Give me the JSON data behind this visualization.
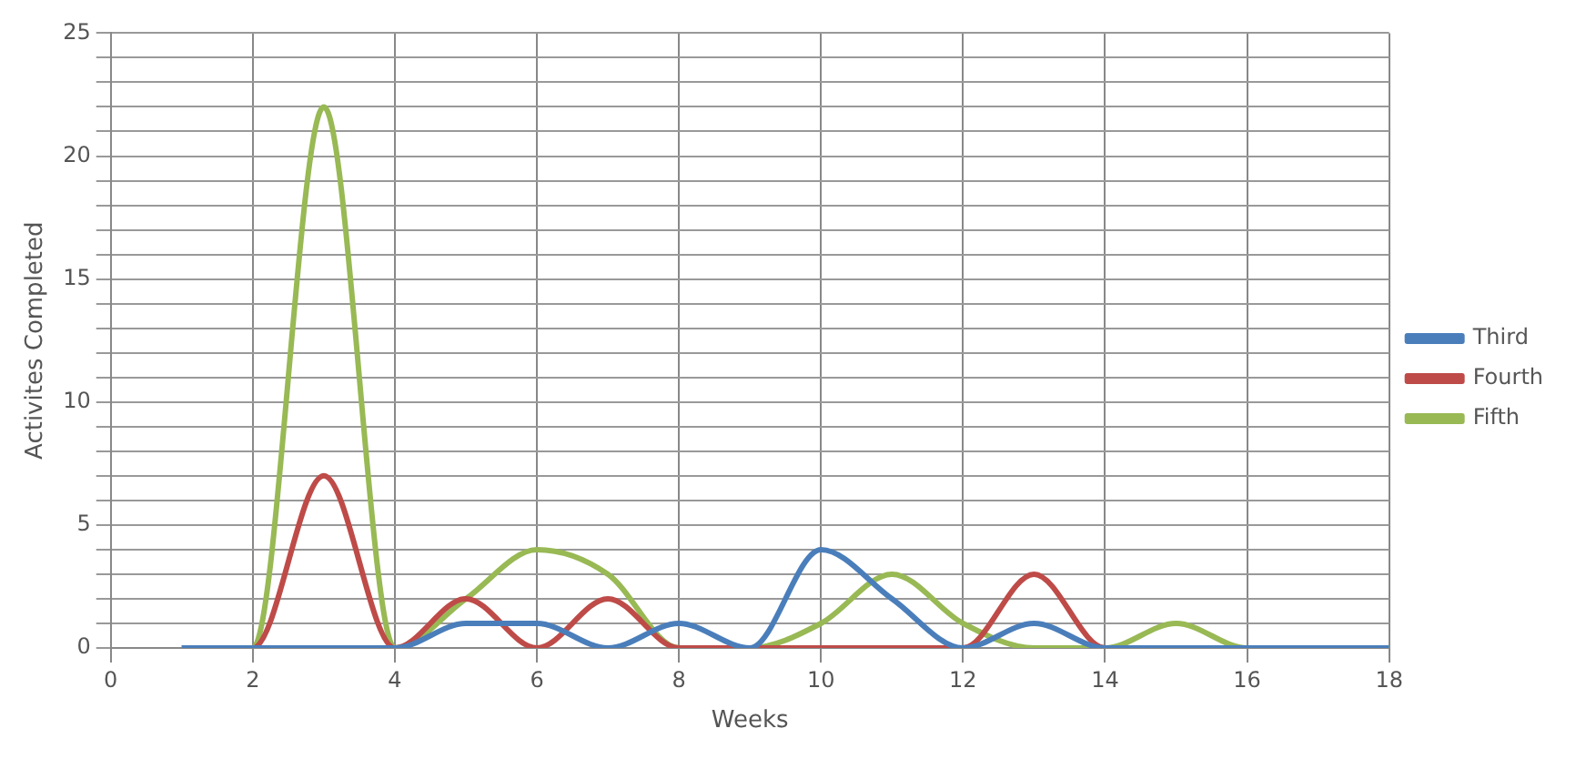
{
  "chart_data": {
    "type": "line",
    "xlabel": "Weeks",
    "ylabel": "Activites Completed",
    "x": [
      1,
      2,
      3,
      4,
      5,
      6,
      7,
      8,
      9,
      10,
      11,
      12,
      13,
      14,
      15,
      16,
      17,
      18
    ],
    "series": [
      {
        "name": "Third",
        "color": "#4a7ebb",
        "values": [
          0,
          0,
          0,
          0,
          1,
          1,
          0,
          1,
          0,
          4,
          2,
          0,
          1,
          0,
          0,
          0,
          0,
          0
        ]
      },
      {
        "name": "Fourth",
        "color": "#be4b48",
        "values": [
          0,
          0,
          7,
          0,
          2,
          0,
          2,
          0,
          0,
          0,
          0,
          0,
          3,
          0,
          0,
          null,
          null,
          null
        ]
      },
      {
        "name": "Fifth",
        "color": "#98b954",
        "values": [
          0,
          0,
          22,
          0,
          2,
          4,
          3,
          0,
          0,
          1,
          3,
          1,
          0,
          0,
          1,
          0,
          0,
          0
        ]
      }
    ],
    "xlim": [
      0,
      18
    ],
    "xticks": [
      0,
      2,
      4,
      6,
      8,
      10,
      12,
      14,
      16,
      18
    ],
    "ylim": [
      0,
      25
    ],
    "yticks": [
      0,
      {
        "value": 1,
        "label": null
      },
      {
        "value": 2,
        "label": null
      },
      {
        "value": 3,
        "label": null
      },
      {
        "value": 4,
        "label": null
      },
      5,
      {
        "value": 6,
        "label": null
      },
      {
        "value": 7,
        "label": null
      },
      {
        "value": 8,
        "label": null
      },
      {
        "value": 9,
        "label": null
      },
      10,
      {
        "value": 11,
        "label": null
      },
      {
        "value": 12,
        "label": null
      },
      {
        "value": 13,
        "label": null
      },
      {
        "value": 14,
        "label": null
      },
      15,
      {
        "value": 16,
        "label": null
      },
      {
        "value": 17,
        "label": null
      },
      {
        "value": 18,
        "label": null
      },
      {
        "value": 19,
        "label": null
      },
      20,
      {
        "value": 21,
        "label": null
      },
      {
        "value": 22,
        "label": null
      },
      {
        "value": 23,
        "label": null
      },
      {
        "value": 24,
        "label": null
      },
      25
    ],
    "grid": true,
    "legend": "right",
    "marker": "none",
    "line_style": "solid"
  }
}
